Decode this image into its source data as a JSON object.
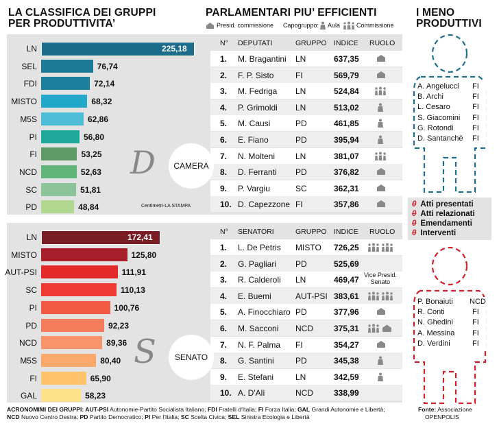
{
  "left_title": [
    "LA CLASSIFICA DEI GRUPPI",
    "PER PRODUTTIVITA’"
  ],
  "mid_title": "PARLAMENTARI PIU’ EFFICIENTI",
  "legend": {
    "presid": "Presid. commissione",
    "capogruppo": "Capogruppo:",
    "aula": "Aula",
    "commissione": "Commissione"
  },
  "right_title": [
    "I MENO",
    "PRODUTTIVI"
  ],
  "camera_label": "CAMERA",
  "senato_label": "SENATO",
  "credit": "Centimetri-LA STAMPA",
  "chart_data": [
    {
      "type": "bar",
      "title": "Camera",
      "categories": [
        "LN",
        "SEL",
        "FDI",
        "MISTO",
        "M5S",
        "PI",
        "FI",
        "NCD",
        "SC",
        "PD"
      ],
      "values": [
        225.18,
        76.74,
        72.14,
        68.32,
        62.86,
        56.8,
        53.25,
        52.63,
        51.81,
        48.84
      ],
      "labels": [
        "225,18",
        "76,74",
        "72,14",
        "68,32",
        "62,86",
        "56,80",
        "53,25",
        "52,63",
        "51,81",
        "48,84"
      ],
      "colors": [
        "#1d6d8a",
        "#1c7a97",
        "#1b7f9b",
        "#22a8c9",
        "#4dbdd8",
        "#1da897",
        "#5d9a67",
        "#62b57a",
        "#8cc49a",
        "#b2d88f"
      ]
    },
    {
      "type": "bar",
      "title": "Senato",
      "categories": [
        "LN",
        "MISTO",
        "AUT-PSI",
        "SC",
        "PI",
        "PD",
        "NCD",
        "M5S",
        "FI",
        "GAL"
      ],
      "values": [
        172.41,
        125.8,
        111.91,
        110.13,
        100.76,
        92.23,
        89.36,
        80.4,
        65.9,
        58.23
      ],
      "labels": [
        "172,41",
        "125,80",
        "111,91",
        "110,13",
        "100,76",
        "92,23",
        "89,36",
        "80,40",
        "65,90",
        "58,23"
      ],
      "colors": [
        "#7a1c24",
        "#a61f2b",
        "#e22a2a",
        "#ee3a33",
        "#f25a45",
        "#f57c5c",
        "#f8946a",
        "#fba86d",
        "#fdc46c",
        "#fee28a"
      ]
    }
  ],
  "deputati": {
    "headers": [
      "N°",
      "DEPUTATI",
      "GRUPPO",
      "INDICE",
      "RUOLO"
    ],
    "rows": [
      {
        "n": "1.",
        "name": "M. Bragantini",
        "group": "LN",
        "index": "637,35",
        "role": "presid"
      },
      {
        "n": "2.",
        "name": "F. P. Sisto",
        "group": "FI",
        "index": "569,79",
        "role": "presid"
      },
      {
        "n": "3.",
        "name": "M. Fedriga",
        "group": "LN",
        "index": "524,84",
        "role": "capo"
      },
      {
        "n": "4.",
        "name": "P. Grimoldi",
        "group": "LN",
        "index": "513,02",
        "role": "comm"
      },
      {
        "n": "5.",
        "name": "M. Causi",
        "group": "PD",
        "index": "461,85",
        "role": "comm"
      },
      {
        "n": "6.",
        "name": "E. Fiano",
        "group": "PD",
        "index": "395,94",
        "role": "comm"
      },
      {
        "n": "7.",
        "name": "N. Molteni",
        "group": "LN",
        "index": "381,07",
        "role": "capo"
      },
      {
        "n": "8.",
        "name": "D. Ferranti",
        "group": "PD",
        "index": "376,82",
        "role": "presid"
      },
      {
        "n": "9.",
        "name": "P. Vargiu",
        "group": "SC",
        "index": "362,31",
        "role": "presid"
      },
      {
        "n": "10.",
        "name": "D. Capezzone",
        "group": "FI",
        "index": "357,86",
        "role": "presid"
      }
    ]
  },
  "senatori": {
    "headers": [
      "N°",
      "SENATORI",
      "GRUPPO",
      "INDICE",
      "RUOLO"
    ],
    "vice": [
      "Vice Presid.",
      "Senato"
    ],
    "rows": [
      {
        "n": "1.",
        "name": "L. De Petris",
        "group": "MISTO",
        "index": "726,25",
        "role": "capo3"
      },
      {
        "n": "2.",
        "name": "G. Pagliari",
        "group": "PD",
        "index": "525,69",
        "role": ""
      },
      {
        "n": "3.",
        "name": "R. Calderoli",
        "group": "LN",
        "index": "469,47",
        "role": "vice"
      },
      {
        "n": "4.",
        "name": "E. Buemi",
        "group": "AUT-PSI",
        "index": "383,61",
        "role": "capo3"
      },
      {
        "n": "5.",
        "name": "A. Finocchiaro",
        "group": "PD",
        "index": "377,96",
        "role": "presid"
      },
      {
        "n": "6.",
        "name": "M. Sacconi",
        "group": "NCD",
        "index": "375,31",
        "role": "capopres"
      },
      {
        "n": "7.",
        "name": "N. F. Palma",
        "group": "FI",
        "index": "354,27",
        "role": "presid"
      },
      {
        "n": "8.",
        "name": "G. Santini",
        "group": "PD",
        "index": "345,38",
        "role": "comm"
      },
      {
        "n": "9.",
        "name": "E. Stefani",
        "group": "LN",
        "index": "342,59",
        "role": "comm"
      },
      {
        "n": "10.",
        "name": "A. D'Alì",
        "group": "NCD",
        "index": "338,99",
        "role": ""
      }
    ]
  },
  "least_camera": [
    {
      "name": "A. Angelucci",
      "group": "FI"
    },
    {
      "name": "B. Archi",
      "group": "FI"
    },
    {
      "name": "L. Cesaro",
      "group": "FI"
    },
    {
      "name": "S. Giacomini",
      "group": "FI"
    },
    {
      "name": "G. Rotondi",
      "group": "FI"
    },
    {
      "name": "D. Santanchè",
      "group": "FI"
    }
  ],
  "least_senato": [
    {
      "name": "P. Bonaiuti",
      "group": "NCD"
    },
    {
      "name": "R. Conti",
      "group": "FI"
    },
    {
      "name": "N. Ghedini",
      "group": "FI"
    },
    {
      "name": "A. Messina",
      "group": "FI"
    },
    {
      "name": "D. Verdini",
      "group": "FI"
    }
  ],
  "criteria": [
    "Atti presentati",
    "Atti relazionati",
    "Emendamenti",
    "Interventi"
  ],
  "criteria_mark": "0",
  "footer": {
    "acronyms": [
      [
        {
          "b": "ACRONOMIMI DEI GRUPPI: "
        },
        {
          "b": "AUT-PSI"
        },
        {
          "t": " Autonomie-Partito Socialista Italiano; "
        },
        {
          "b": "FDI"
        },
        {
          "t": " Fratelli d'Italia; "
        },
        {
          "b": "FI"
        },
        {
          "t": " Forza Italia; "
        },
        {
          "b": "GAL"
        },
        {
          "t": " Grandi Autonomie e Libertà;"
        }
      ],
      [
        {
          "b": "NCD"
        },
        {
          "t": " Nuovo Centro Destra; "
        },
        {
          "b": "PD"
        },
        {
          "t": " Partito Democratico; "
        },
        {
          "b": "PI"
        },
        {
          "t": " Per l'Italia; "
        },
        {
          "b": "SC"
        },
        {
          "t": " Scelta Civica; "
        },
        {
          "b": "SEL"
        },
        {
          "t": " Sinistra Ecologia e Libertà"
        }
      ]
    ],
    "source_label": "Fonte:",
    "source_text": "Associazione",
    "source_text2": "OPENPOLIS"
  }
}
